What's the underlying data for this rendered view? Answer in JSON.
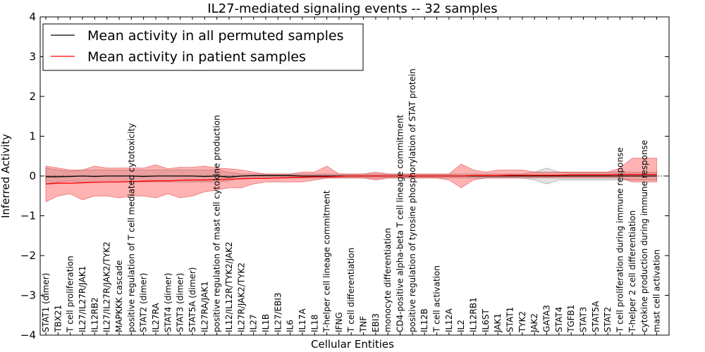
{
  "chart_data": {
    "type": "line",
    "title": "IL27-mediated signaling events -- 32 samples",
    "xlabel": "Cellular Entities",
    "ylabel": "Inferred Activity",
    "ylim": [
      -4,
      4
    ],
    "yticks": [
      -4,
      -3,
      -2,
      -1,
      0,
      1,
      2,
      3,
      4
    ],
    "ytick_labels": [
      "−4",
      "−3",
      "−2",
      "−1",
      "0",
      "1",
      "2",
      "3",
      "4"
    ],
    "legend_position": "top-left",
    "categories": [
      "STAT1 (dimer)",
      "TBX21",
      "T cell proliferation",
      "IL27/IL27R/JAK1",
      "IL12RB2",
      "IL27/IL27R/JAK2/TYK2",
      "MAPKKK cascade",
      "positive regulation of T cell mediated cytotoxicity",
      "STAT2 (dimer)",
      "IL27RA",
      "STAT4 (dimer)",
      "STAT3 (dimer)",
      "STAT5A (dimer)",
      "IL27RA/JAK1",
      "positive regulation of mast cell cytokine production",
      "IL12/IL12R/TYK2/JAK2",
      "IL27R/JAK2/TYK2",
      "IL27",
      "IL1B",
      "IL27/EBI3",
      "IL6",
      "IL17A",
      "IL18",
      "T-helper cell lineage commitment",
      "IFNG",
      "T cell differentiation",
      "TNF",
      "EBI3",
      "monocyte differentiation",
      "CD4-positive alpha-beta T cell lineage commitment",
      "positive regulation of tyrosine phosphorylation of STAT protein",
      "IL12B",
      "T cell activation",
      "IL12A",
      "IL2",
      "IL12RB1",
      "IL6ST",
      "JAK1",
      "STAT1",
      "TYK2",
      "JAK2",
      "GATA3",
      "STAT4",
      "TGFB1",
      "STAT3",
      "STAT5A",
      "STAT2",
      "T cell proliferation during immune response",
      "T-helper 2 cell differentiation",
      "cytokine production during immune response",
      "mast cell activation"
    ],
    "series": [
      {
        "name": "Mean activity in all permuted samples",
        "color": "#000000",
        "values": [
          -0.02,
          -0.02,
          -0.01,
          0.0,
          -0.01,
          0.0,
          0.0,
          0.0,
          -0.01,
          0.0,
          0.0,
          0.0,
          0.0,
          -0.01,
          0.0,
          -0.03,
          0.0,
          0.01,
          0.01,
          0.01,
          0.01,
          0.0,
          0.0,
          0.0,
          0.0,
          0.0,
          0.0,
          0.0,
          0.0,
          0.0,
          0.0,
          0.0,
          0.0,
          0.0,
          0.0,
          0.0,
          0.0,
          0.0,
          0.0,
          0.0,
          0.0,
          0.0,
          0.0,
          0.0,
          0.0,
          0.0,
          0.0,
          0.0,
          0.0,
          0.0,
          0.0
        ],
        "band_upper": [
          0.2,
          0.15,
          0.12,
          0.15,
          0.15,
          0.15,
          0.15,
          0.15,
          0.15,
          0.15,
          0.15,
          0.15,
          0.15,
          0.15,
          0.15,
          0.1,
          0.05,
          0.05,
          0.05,
          0.05,
          0.05,
          0.05,
          0.05,
          0.05,
          0.05,
          0.05,
          0.05,
          0.05,
          0.05,
          0.05,
          0.05,
          0.05,
          0.05,
          0.05,
          0.05,
          0.05,
          0.05,
          0.05,
          0.05,
          0.05,
          0.1,
          0.2,
          0.1,
          0.1,
          0.1,
          0.1,
          0.1,
          0.1,
          0.1,
          0.1,
          0.1
        ],
        "band_lower": [
          -0.2,
          -0.15,
          -0.12,
          -0.15,
          -0.15,
          -0.15,
          -0.15,
          -0.15,
          -0.15,
          -0.15,
          -0.15,
          -0.15,
          -0.15,
          -0.15,
          -0.15,
          -0.12,
          -0.05,
          -0.05,
          -0.05,
          -0.05,
          -0.05,
          -0.05,
          -0.05,
          -0.05,
          -0.05,
          -0.05,
          -0.05,
          -0.05,
          -0.05,
          -0.05,
          -0.05,
          -0.05,
          -0.05,
          -0.05,
          -0.05,
          -0.05,
          -0.05,
          -0.05,
          -0.05,
          -0.05,
          -0.1,
          -0.2,
          -0.1,
          -0.1,
          -0.1,
          -0.1,
          -0.1,
          -0.1,
          -0.1,
          -0.1,
          -0.1
        ]
      },
      {
        "name": "Mean activity in patient samples",
        "color": "#ff0000",
        "values": [
          -0.2,
          -0.18,
          -0.18,
          -0.17,
          -0.16,
          -0.15,
          -0.15,
          -0.14,
          -0.13,
          -0.12,
          -0.12,
          -0.11,
          -0.1,
          -0.1,
          -0.09,
          -0.08,
          -0.07,
          -0.06,
          -0.06,
          -0.05,
          -0.04,
          -0.03,
          -0.02,
          -0.02,
          -0.01,
          0.0,
          0.0,
          0.0,
          0.0,
          0.0,
          0.0,
          0.0,
          0.0,
          0.0,
          0.0,
          0.01,
          0.01,
          0.01,
          0.02,
          0.02,
          0.02,
          0.02,
          0.02,
          0.03,
          0.03,
          0.03,
          0.03,
          0.04,
          0.04,
          0.04,
          0.04
        ],
        "band_upper": [
          0.25,
          0.2,
          0.15,
          0.15,
          0.25,
          0.2,
          0.2,
          0.2,
          0.2,
          0.28,
          0.18,
          0.22,
          0.22,
          0.25,
          0.2,
          0.18,
          0.15,
          0.1,
          0.05,
          0.05,
          0.05,
          0.1,
          0.1,
          0.25,
          0.05,
          0.05,
          0.05,
          0.1,
          0.05,
          0.05,
          0.05,
          0.05,
          0.05,
          0.05,
          0.3,
          0.15,
          0.1,
          0.15,
          0.15,
          0.15,
          0.1,
          0.1,
          0.1,
          0.1,
          0.1,
          0.1,
          0.1,
          0.2,
          0.45,
          0.45,
          0.45
        ],
        "band_lower": [
          -0.65,
          -0.5,
          -0.45,
          -0.6,
          -0.5,
          -0.5,
          -0.55,
          -0.5,
          -0.5,
          -0.55,
          -0.45,
          -0.55,
          -0.5,
          -0.4,
          -0.35,
          -0.3,
          -0.3,
          -0.2,
          -0.15,
          -0.15,
          -0.15,
          -0.15,
          -0.1,
          -0.05,
          -0.05,
          -0.05,
          -0.05,
          -0.1,
          -0.05,
          -0.05,
          -0.05,
          -0.05,
          -0.05,
          -0.1,
          -0.3,
          -0.1,
          -0.05,
          -0.05,
          -0.05,
          -0.05,
          -0.05,
          -0.05,
          -0.05,
          -0.05,
          -0.05,
          -0.05,
          -0.05,
          -0.05,
          -0.15,
          -0.15,
          -0.15
        ]
      }
    ]
  }
}
